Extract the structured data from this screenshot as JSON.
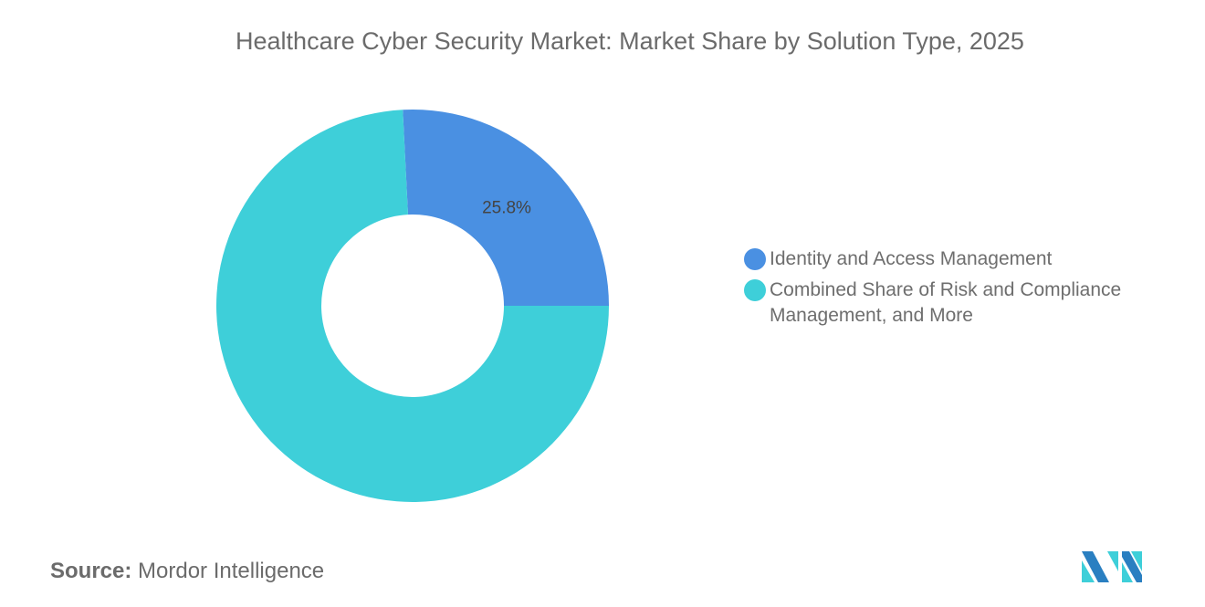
{
  "chart_data": {
    "type": "pie",
    "subtype": "donut",
    "title": "Healthcare Cyber Security Market: Market Share by Solution Type, 2025",
    "categories": [
      "Identity and Access Management",
      "Combined Share of Risk and Compliance Management, and More"
    ],
    "values": [
      25.8,
      74.2
    ],
    "data_labels": [
      "25.8%",
      ""
    ],
    "colors": [
      "#4a90e2",
      "#3ecfd9"
    ],
    "legend_placement": "right"
  },
  "source": {
    "label": "Source:",
    "value": "Mordor Intelligence"
  },
  "logo": {
    "name": "mordor-intelligence-logo",
    "colors": [
      "#2a7fc1",
      "#3ecfd9"
    ]
  }
}
